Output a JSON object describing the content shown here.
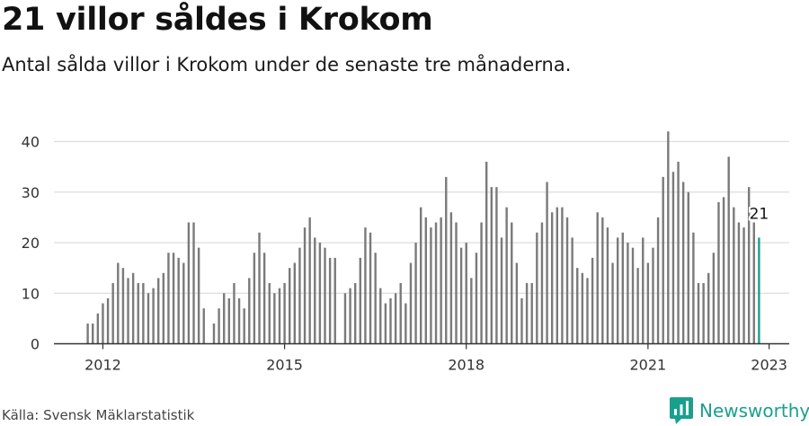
{
  "title": "21 villor såldes i Krokom",
  "subtitle": "Antal sålda villor i Krokom under de senaste tre månaderna.",
  "source": "Källa: Svensk Mäklarstatistik",
  "brand": "Newsworthy",
  "colors": {
    "bar": "#7a7a7a",
    "highlight": "#1a9f8f",
    "grid": "#dddddd",
    "axis": "#333333"
  },
  "chart_data": {
    "type": "bar",
    "title": "21 villor såldes i Krokom",
    "subtitle": "Antal sålda villor i Krokom under de senaste tre månaderna.",
    "xlabel": "",
    "ylabel": "",
    "ylim": [
      0,
      45
    ],
    "yticks": [
      0,
      10,
      20,
      30,
      40
    ],
    "x_ticks": [
      "2012",
      "2015",
      "2018",
      "2021",
      "2023"
    ],
    "x_start": "2011-10",
    "frequency": "monthly",
    "grid": true,
    "highlight_label": "21",
    "values": [
      4,
      4,
      6,
      8,
      9,
      12,
      16,
      15,
      13,
      14,
      12,
      12,
      10,
      11,
      13,
      14,
      18,
      18,
      17,
      16,
      24,
      24,
      19,
      7,
      null,
      4,
      7,
      10,
      9,
      12,
      9,
      7,
      13,
      18,
      22,
      18,
      12,
      10,
      11,
      12,
      15,
      16,
      19,
      23,
      25,
      21,
      20,
      19,
      17,
      17,
      null,
      10,
      11,
      12,
      17,
      23,
      22,
      18,
      11,
      8,
      9,
      10,
      12,
      8,
      16,
      20,
      27,
      25,
      23,
      24,
      25,
      33,
      26,
      24,
      19,
      20,
      13,
      18,
      24,
      36,
      31,
      31,
      21,
      27,
      24,
      16,
      9,
      12,
      12,
      22,
      24,
      32,
      26,
      27,
      27,
      25,
      21,
      15,
      14,
      13,
      17,
      26,
      25,
      23,
      16,
      21,
      22,
      20,
      19,
      15,
      21,
      16,
      19,
      25,
      33,
      42,
      34,
      36,
      32,
      30,
      22,
      12,
      12,
      14,
      18,
      28,
      29,
      37,
      27,
      24,
      23,
      31,
      24,
      21
    ]
  }
}
